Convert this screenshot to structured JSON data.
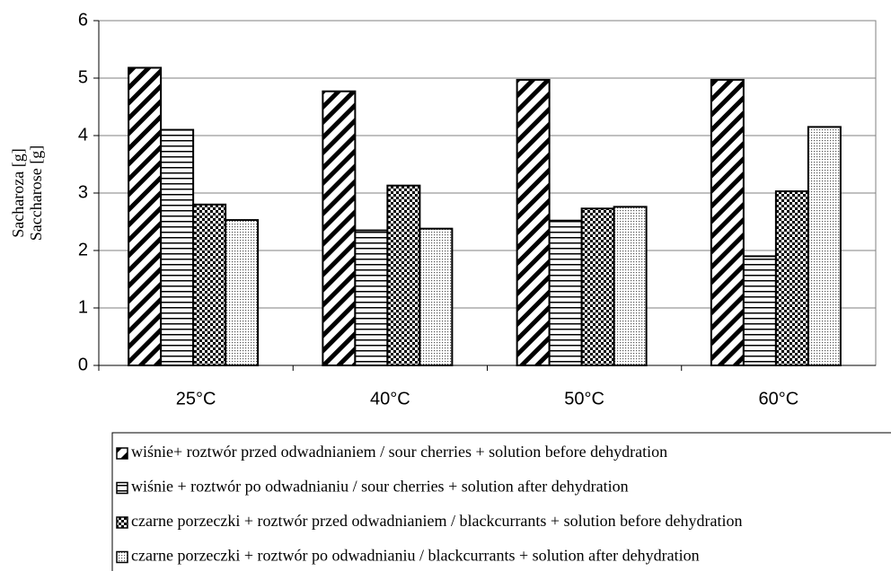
{
  "chart_data": {
    "type": "bar",
    "ylabel": [
      "Sacharoza [g]",
      "Saccharose [g]"
    ],
    "categories": [
      "25°C",
      "40°C",
      "50°C",
      "60°C"
    ],
    "series": [
      {
        "name": "wiśnie+ roztwór przed odwadnianiem / sour cherries + solution before dehydration",
        "color": "#000000",
        "pattern": "diagonal",
        "values": [
          5.18,
          4.77,
          4.97,
          4.97
        ]
      },
      {
        "name": "wiśnie + roztwór po odwadnianiu / sour cherries + solution after dehydration",
        "color": "#000000",
        "pattern": "horizontal",
        "values": [
          4.1,
          2.35,
          2.52,
          1.9
        ]
      },
      {
        "name": "czarne porzeczki + roztwór przed odwadnianiem / blackcurrants + solution before dehydration",
        "color": "#000000",
        "pattern": "checker",
        "values": [
          2.8,
          3.13,
          2.73,
          3.03
        ]
      },
      {
        "name": "czarne porzeczki + roztwór po odwadnianiu / blackcurrants + solution after dehydration",
        "color": "#000000",
        "pattern": "dots",
        "values": [
          2.53,
          2.38,
          2.76,
          4.15
        ]
      }
    ],
    "ylim": [
      0,
      6
    ],
    "yticks": [
      0,
      1,
      2,
      3,
      4,
      5,
      6
    ],
    "grid": true
  }
}
